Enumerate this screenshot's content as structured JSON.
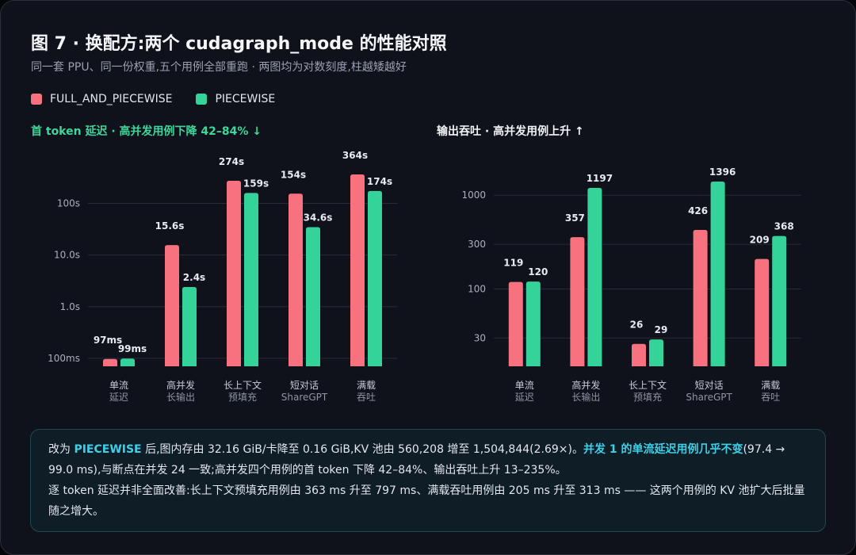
{
  "header": {
    "title": "图 7 · 换配方:两个 cudagraph_mode 的性能对照",
    "subtitle": "同一套 PPU、同一份权重,五个用例全部重跑 · 两图均为对数刻度,柱越矮越好"
  },
  "legend": [
    {
      "name": "FULL_AND_PIECEWISE",
      "color": "#f8717e"
    },
    {
      "name": "PIECEWISE",
      "color": "#34d399"
    }
  ],
  "colors": {
    "full": "#f8717e",
    "piecewise": "#34d399"
  },
  "chart_data": [
    {
      "type": "bar",
      "title": "首 token 延迟 · 高并发用例下降 42–84% ↓",
      "yscale": "log",
      "yticks": [
        0.1,
        1,
        10,
        100
      ],
      "ytick_labels": [
        "100ms",
        "1.0s",
        "10.0s",
        "100s"
      ],
      "ylim": [
        0.07,
        500
      ],
      "categories": [
        [
          "单流",
          "延迟"
        ],
        [
          "高并发",
          "长输出"
        ],
        [
          "长上下文",
          "预填充"
        ],
        [
          "短对话",
          "ShareGPT"
        ],
        [
          "满载",
          "吞吐"
        ]
      ],
      "series": [
        {
          "name": "FULL_AND_PIECEWISE",
          "values": [
            0.097,
            15.6,
            274,
            154,
            364
          ],
          "labels": [
            "97ms",
            "15.6s",
            "274s",
            "154s",
            "364s"
          ]
        },
        {
          "name": "PIECEWISE",
          "values": [
            0.099,
            2.4,
            159,
            34.6,
            174
          ],
          "labels": [
            "99ms",
            "2.4s",
            "159s",
            "34.6s",
            "174s"
          ]
        }
      ]
    },
    {
      "type": "bar",
      "title": "输出吞吐 · 高并发用例上升 ↑",
      "yscale": "log",
      "yticks": [
        30,
        100,
        300,
        1000
      ],
      "ytick_labels": [
        "30",
        "100",
        "300",
        "1000"
      ],
      "ylim": [
        15,
        1800
      ],
      "categories": [
        [
          "单流",
          "延迟"
        ],
        [
          "高并发",
          "长输出"
        ],
        [
          "长上下文",
          "预填充"
        ],
        [
          "短对话",
          "ShareGPT"
        ],
        [
          "满载",
          "吞吐"
        ]
      ],
      "series": [
        {
          "name": "FULL_AND_PIECEWISE",
          "values": [
            119,
            357,
            26,
            426,
            209
          ],
          "labels": [
            "119",
            "357",
            "26",
            "426",
            "209"
          ]
        },
        {
          "name": "PIECEWISE",
          "values": [
            120,
            1197,
            29,
            1396,
            368
          ],
          "labels": [
            "120",
            "1197",
            "29",
            "1396",
            "368"
          ]
        }
      ]
    }
  ],
  "note": {
    "p1_a": "改为 ",
    "p1_b": "PIECEWISE",
    "p1_c": " 后,图内存由 32.16 GiB/卡降至 0.16 GiB,KV 池由 560,208 增至 1,504,844(2.69×)。",
    "p1_d": "并发 1 的单流延迟用例几乎不变",
    "p1_e": "(97.4 → 99.0 ms),与断点在并发 24 一致;高并发四个用例的首 token 下降 42–84%、输出吞吐上升 13–235%。",
    "p2": "逐 token 延迟并非全面改善:长上下文预填充用例由 363 ms 升至 797 ms、满载吞吐用例由 205 ms 升至 313 ms —— 这两个用例的 KV 池扩大后批量随之增大。"
  }
}
